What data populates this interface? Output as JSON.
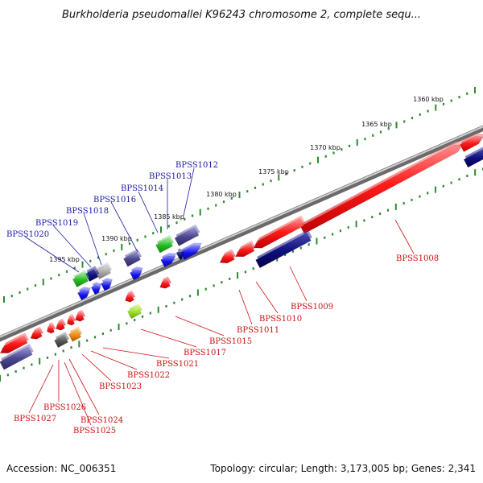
{
  "title": "Burkholderia pseudomallei K96243 chromosome 2, complete sequ...",
  "footer": {
    "accession": "Accession: NC_006351",
    "summary": "Topology: circular; Length: 3,173,005 bp; Genes: 2,341"
  },
  "colors": {
    "forward_label": "#1a1aaa",
    "reverse_label": "#cc1111",
    "backbone": "#777777",
    "tick": "#2e8b2e"
  },
  "scale_labels": [
    "1360 kbp",
    "1365 kbp",
    "1370 kbp",
    "1375 kbp",
    "1380 kbp",
    "1385 kbp",
    "1390 kbp",
    "1395 kbp"
  ],
  "forward_genes": [
    "BPSS1012",
    "BPSS1013",
    "BPSS1014",
    "BPSS1016",
    "BPSS1018",
    "BPSS1019",
    "BPSS1020"
  ],
  "reverse_genes": [
    "BPSS1008",
    "BPSS1009",
    "BPSS1010",
    "BPSS1011",
    "BPSS1015",
    "BPSS1017",
    "BPSS1021",
    "BPSS1022",
    "BPSS1023",
    "BPSS1024",
    "BPSS1025",
    "BPSS1026",
    "BPSS1027"
  ]
}
